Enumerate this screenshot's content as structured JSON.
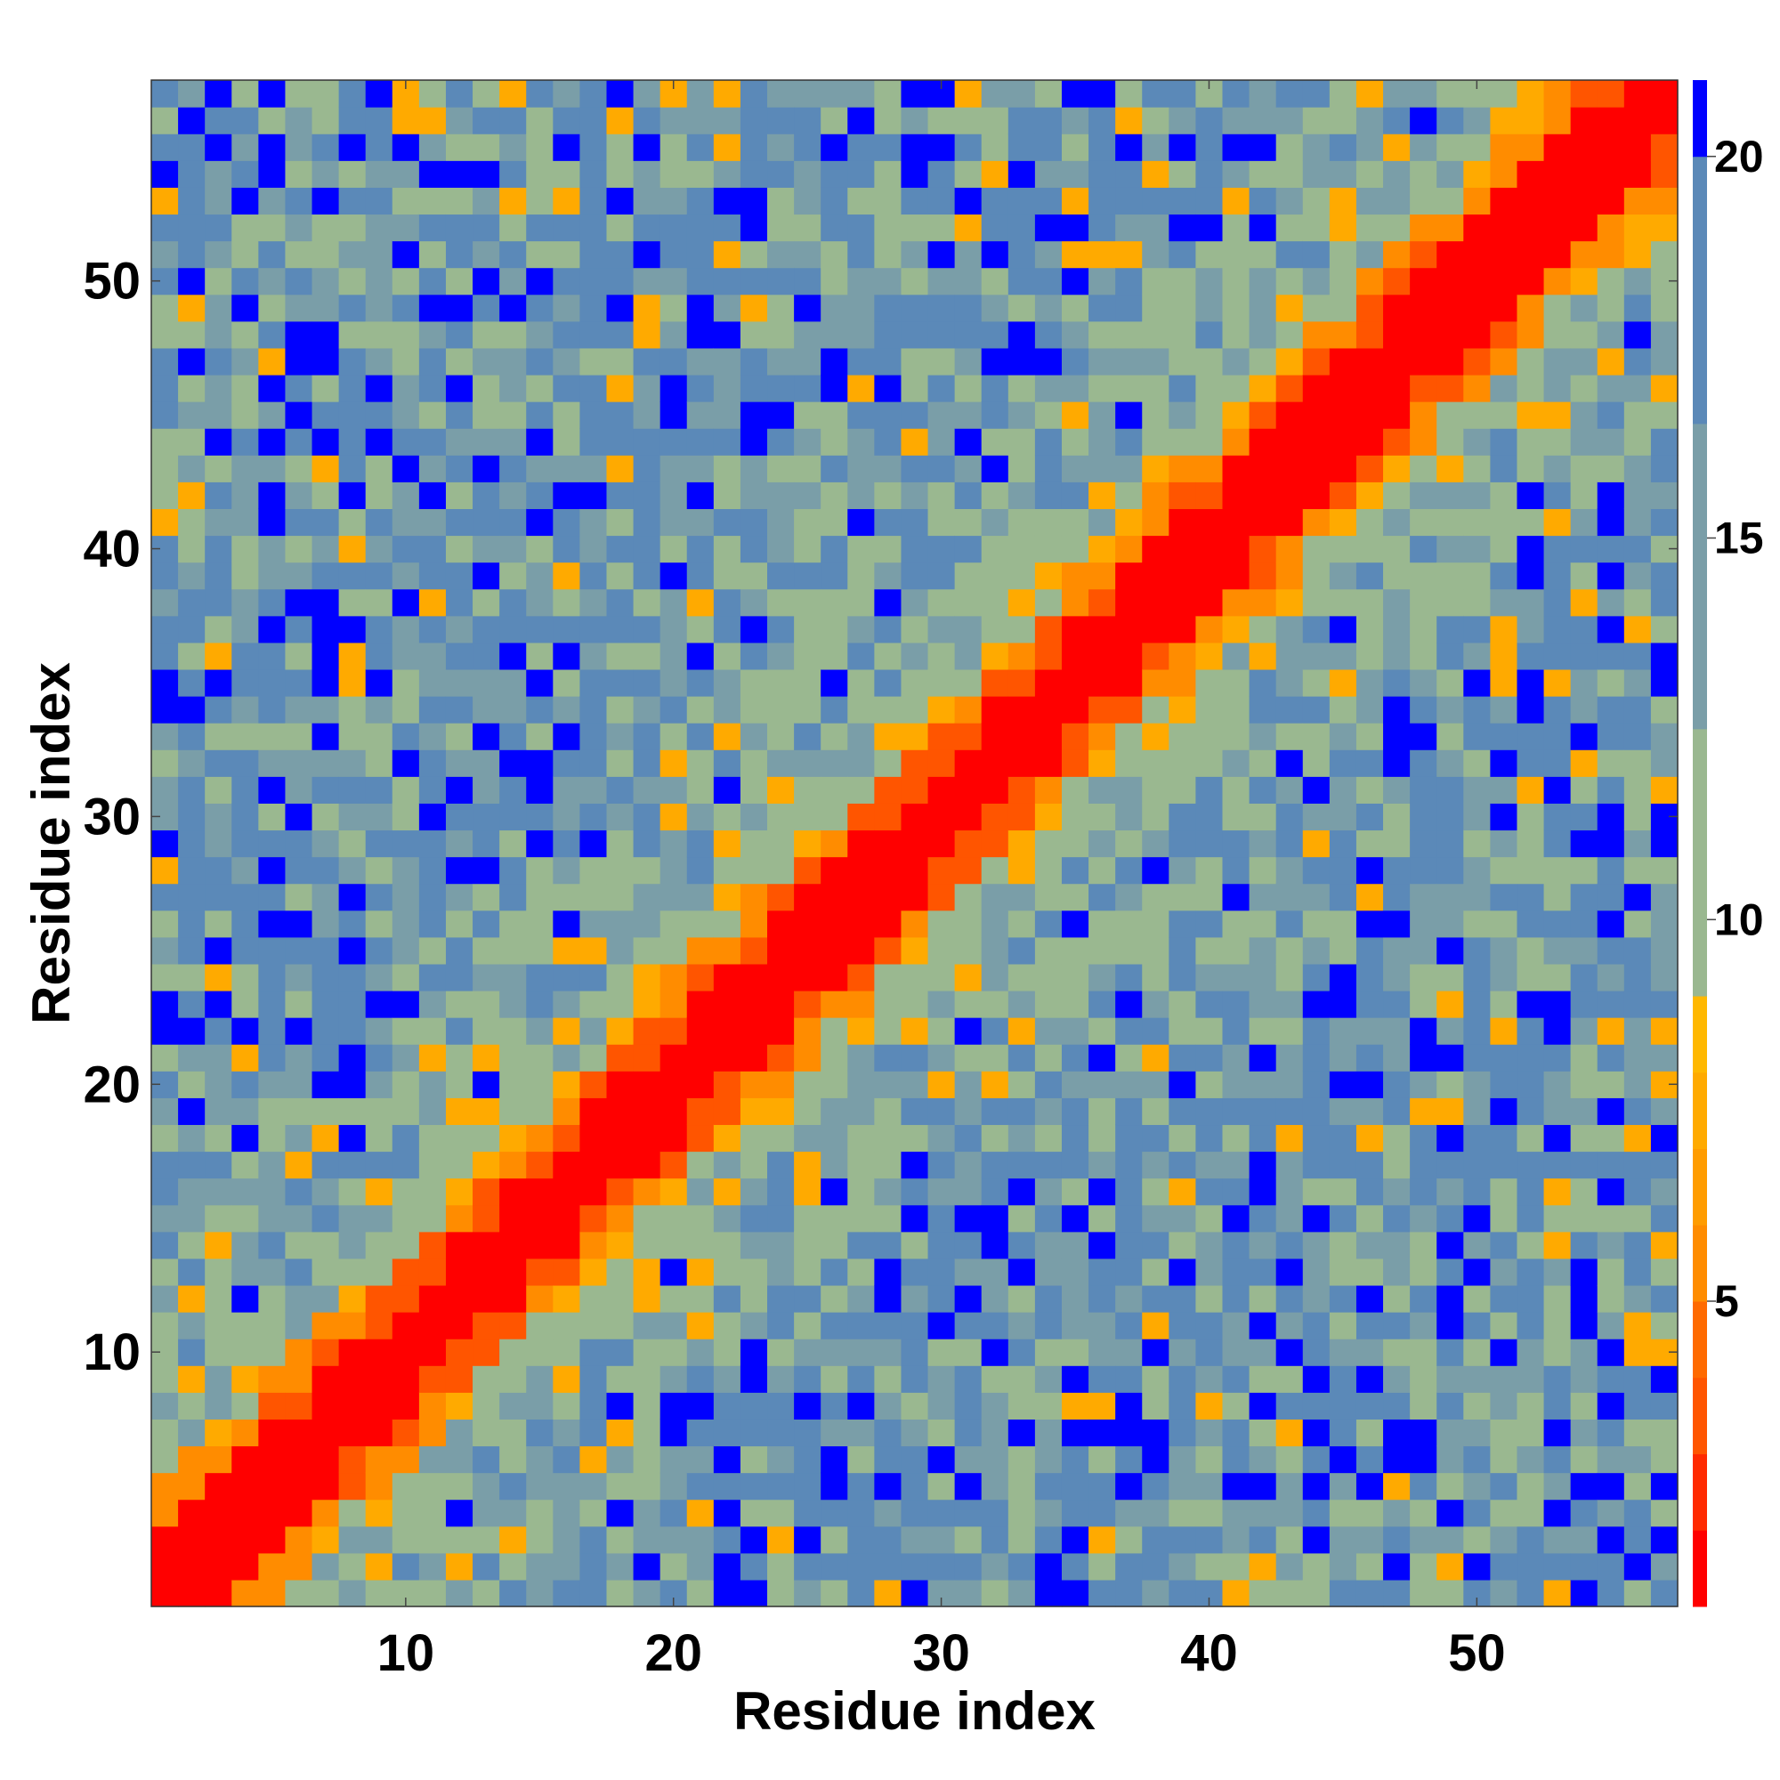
{
  "chart_data": {
    "type": "heatmap",
    "title": "",
    "xlabel": "Residue index",
    "ylabel": "Residue index",
    "n_residues": 57,
    "xlim": [
      0.5,
      57.5
    ],
    "ylim": [
      0.5,
      57.5
    ],
    "x_ticks": [
      10,
      20,
      30,
      40,
      50
    ],
    "y_ticks": [
      10,
      20,
      30,
      40,
      50
    ],
    "colorbar": {
      "range": [
        1,
        21
      ],
      "ticks": [
        5,
        10,
        15,
        20
      ],
      "orientation": "vertical",
      "placement": "right"
    },
    "colors": {
      "contact_close": "#ff0000",
      "contact_near": "#ff5500",
      "contact_mid": "#ff8c00",
      "contact_far": "#ffaa00",
      "medium_green": "#9ab890",
      "medium_teal": "#7a9ea8",
      "far_steel": "#5b89b8",
      "very_far": "#0000ff"
    },
    "symmetric": true,
    "matrix_description": "Symmetric residue-residue distance map; diagonal band |i-j|<=2 near 1-3 (red), orange contacts nearby, mid-range green/teal, blue for large distances."
  },
  "axes": {
    "x_title": "Residue index",
    "y_title": "Residue index"
  }
}
